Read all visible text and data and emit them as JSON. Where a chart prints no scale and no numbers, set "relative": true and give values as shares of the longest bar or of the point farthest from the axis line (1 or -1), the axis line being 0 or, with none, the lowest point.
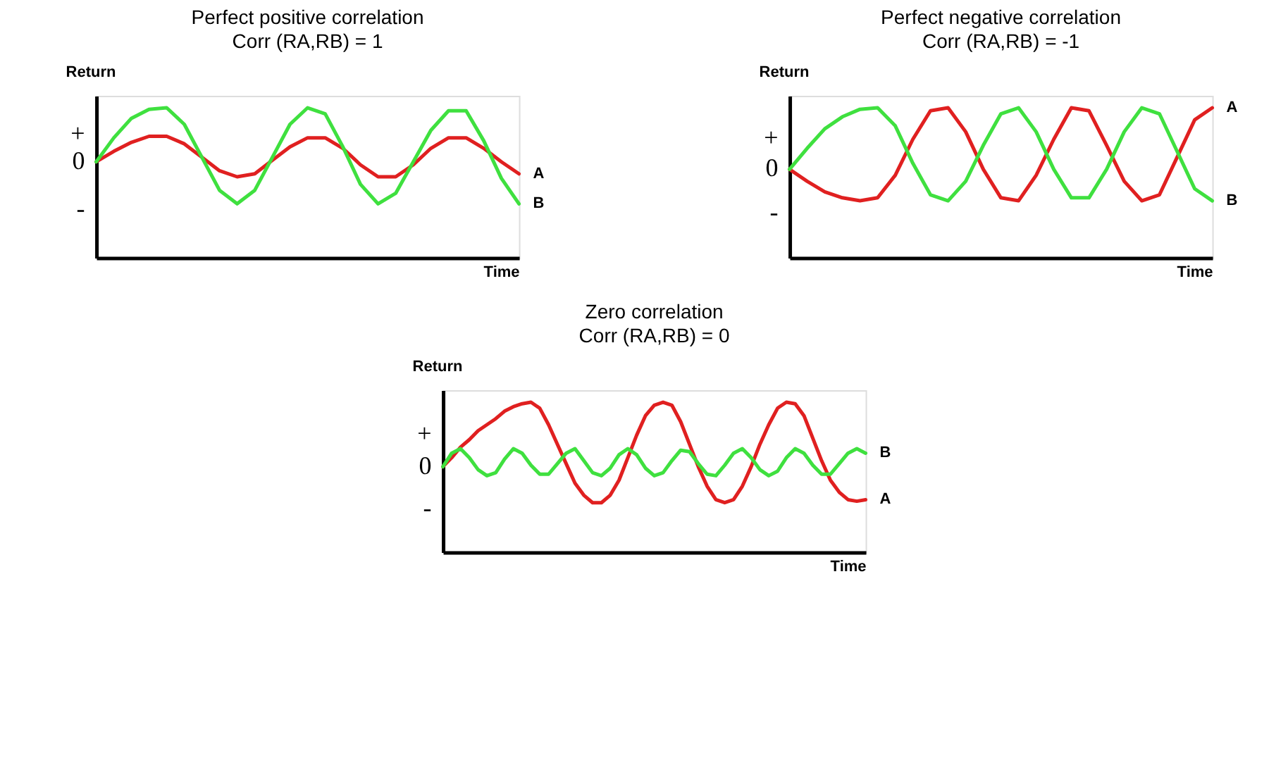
{
  "chart_data": [
    {
      "type": "line",
      "title": "Perfect positive correlation",
      "subtitle": "Corr (RA,RB) = 1",
      "xlabel": "Time",
      "ylabel": "Return",
      "relative": true,
      "annotations": [
        "+",
        "0",
        "-"
      ],
      "categories": [
        null,
        null,
        null,
        null,
        null,
        null,
        null,
        null,
        null,
        null,
        null,
        null,
        null,
        null,
        null,
        null,
        null,
        null,
        null,
        null,
        null,
        null,
        null,
        null,
        null
      ],
      "series": [
        {
          "name": "A",
          "color": "#e02020",
          "values": [
            0.64,
            0.71,
            0.77,
            0.81,
            0.81,
            0.76,
            0.67,
            0.58,
            0.54,
            0.56,
            0.65,
            0.74,
            0.8,
            0.8,
            0.73,
            0.62,
            0.54,
            0.54,
            0.62,
            0.73,
            0.8,
            0.8,
            0.73,
            0.64,
            0.56
          ]
        },
        {
          "name": "B",
          "color": "#3fe03f",
          "values": [
            0.64,
            0.8,
            0.93,
            0.99,
            1,
            0.89,
            0.67,
            0.45,
            0.36,
            0.45,
            0.67,
            0.89,
            1,
            0.96,
            0.74,
            0.49,
            0.36,
            0.43,
            0.64,
            0.85,
            0.98,
            0.98,
            0.78,
            0.53,
            0.36
          ]
        }
      ]
    },
    {
      "type": "line",
      "title": "Perfect negative correlation",
      "subtitle": "Corr (RA,RB) = -1",
      "xlabel": "Time",
      "ylabel": "Return",
      "relative": true,
      "annotations": [
        "+",
        "0",
        "-"
      ],
      "categories": [
        null,
        null,
        null,
        null,
        null,
        null,
        null,
        null,
        null,
        null,
        null,
        null,
        null,
        null,
        null,
        null,
        null,
        null,
        null,
        null,
        null,
        null,
        null,
        null,
        null
      ],
      "series": [
        {
          "name": "A",
          "color": "#e02020",
          "values": [
            0.59,
            0.51,
            0.44,
            0.4,
            0.38,
            0.4,
            0.55,
            0.79,
            0.98,
            1,
            0.84,
            0.59,
            0.4,
            0.38,
            0.55,
            0.79,
            1,
            0.98,
            0.75,
            0.51,
            0.38,
            0.42,
            0.67,
            0.92,
            1
          ]
        },
        {
          "name": "B",
          "color": "#3fe03f",
          "values": [
            0.59,
            0.73,
            0.86,
            0.94,
            0.99,
            1,
            0.88,
            0.63,
            0.42,
            0.38,
            0.51,
            0.75,
            0.96,
            1,
            0.84,
            0.59,
            0.4,
            0.4,
            0.59,
            0.84,
            1,
            0.96,
            0.71,
            0.46,
            0.38
          ]
        }
      ]
    },
    {
      "type": "line",
      "title": "Zero correlation",
      "subtitle": "Corr (RA,RB) = 0",
      "xlabel": "Time",
      "ylabel": "Return",
      "relative": true,
      "annotations": [
        "+",
        "0",
        "-"
      ],
      "categories": [
        null,
        null,
        null,
        null,
        null,
        null,
        null,
        null,
        null,
        null,
        null,
        null,
        null,
        null,
        null,
        null,
        null,
        null,
        null,
        null,
        null,
        null,
        null,
        null,
        null,
        null,
        null,
        null,
        null,
        null,
        null,
        null,
        null,
        null,
        null,
        null,
        null,
        null,
        null,
        null,
        null,
        null,
        null,
        null,
        null,
        null,
        null,
        null,
        null
      ],
      "series": [
        {
          "name": "A",
          "color": "#e02020",
          "values": [
            0.57,
            0.63,
            0.7,
            0.75,
            0.81,
            0.85,
            0.89,
            0.94,
            0.97,
            0.99,
            1,
            0.96,
            0.85,
            0.72,
            0.59,
            0.46,
            0.38,
            0.33,
            0.33,
            0.38,
            0.48,
            0.63,
            0.78,
            0.91,
            0.98,
            1,
            0.98,
            0.87,
            0.72,
            0.57,
            0.44,
            0.35,
            0.33,
            0.35,
            0.44,
            0.57,
            0.72,
            0.85,
            0.96,
            1,
            0.99,
            0.91,
            0.76,
            0.61,
            0.48,
            0.4,
            0.35,
            0.34,
            0.35
          ]
        },
        {
          "name": "B",
          "color": "#3fe03f",
          "values": [
            0.57,
            0.66,
            0.69,
            0.63,
            0.55,
            0.51,
            0.53,
            0.62,
            0.69,
            0.66,
            0.58,
            0.52,
            0.52,
            0.59,
            0.66,
            0.69,
            0.61,
            0.53,
            0.51,
            0.56,
            0.65,
            0.69,
            0.65,
            0.56,
            0.51,
            0.53,
            0.61,
            0.68,
            0.67,
            0.59,
            0.52,
            0.51,
            0.58,
            0.66,
            0.69,
            0.63,
            0.55,
            0.51,
            0.54,
            0.63,
            0.69,
            0.66,
            0.58,
            0.52,
            0.52,
            0.59,
            0.66,
            0.69,
            0.66
          ]
        }
      ]
    }
  ]
}
